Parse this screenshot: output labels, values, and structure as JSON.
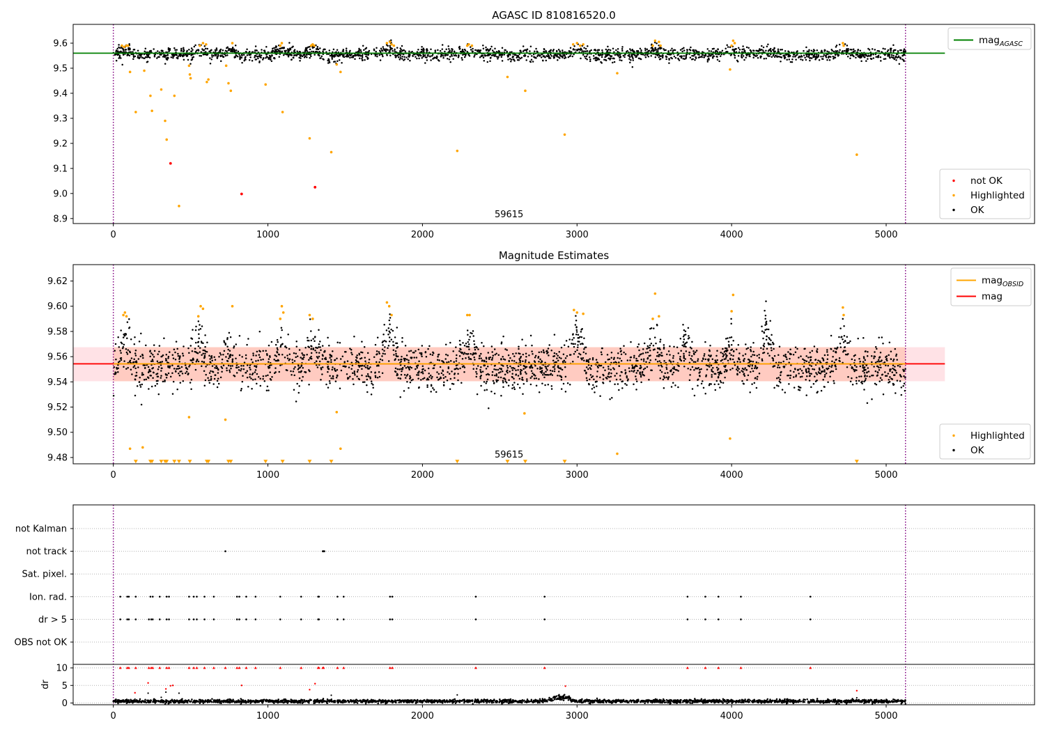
{
  "chart_data": [
    {
      "type": "scatter",
      "title": "AGASC ID 810816520.0",
      "xlim": [
        -260,
        5960
      ],
      "ylim": [
        8.88,
        9.675
      ],
      "x_ticks": [
        0,
        1000,
        2000,
        3000,
        4000,
        5000
      ],
      "y_ticks": [
        8.9,
        9.0,
        9.1,
        9.2,
        9.3,
        9.4,
        9.5,
        9.6
      ],
      "y_tick_labels": [
        "8.9",
        "9.0",
        "9.1",
        "9.2",
        "9.3",
        "9.4",
        "9.5",
        "9.6"
      ],
      "obs_boundaries": [
        0,
        5125
      ],
      "obsid_annotation": "59615",
      "obsid_annotation_x": 2560,
      "reference_lines": [
        {
          "name": "mag",
          "sub": "AGASC",
          "value": 9.56,
          "x_range": [
            -260,
            5380
          ],
          "color": "#008000"
        }
      ],
      "legend_top": [
        {
          "label": "mag",
          "sub": "AGASC",
          "kind": "line",
          "color": "#008000"
        }
      ],
      "legend_bottom": [
        {
          "label": "not OK",
          "kind": "dot",
          "color": "#ff0000"
        },
        {
          "label": "Highlighted",
          "kind": "dot",
          "color": "#ffa500"
        },
        {
          "label": "OK",
          "kind": "dot",
          "color": "#000000"
        }
      ],
      "series": [
        {
          "name": "OK",
          "color": "#000000",
          "type": "band_scatter",
          "x_range": [
            0,
            5125
          ],
          "center": 9.555,
          "spread": 0.013,
          "count": 2300,
          "bumps": [
            [
              80,
              9.575
            ],
            [
              560,
              9.578
            ],
            [
              760,
              9.572
            ],
            [
              1080,
              9.58
            ],
            [
              1290,
              9.578
            ],
            [
              1780,
              9.585
            ],
            [
              2300,
              9.575
            ],
            [
              3000,
              9.582
            ],
            [
              3500,
              9.578
            ],
            [
              4000,
              9.575
            ],
            [
              4220,
              9.578
            ],
            [
              4720,
              9.578
            ]
          ]
        },
        {
          "name": "Highlighted",
          "color": "#ffa500",
          "points": [
            [
              55,
              9.59
            ],
            [
              70,
              9.585
            ],
            [
              85,
              9.59
            ],
            [
              95,
              9.59
            ],
            [
              108,
              9.485
            ],
            [
              145,
              9.325
            ],
            [
              200,
              9.49
            ],
            [
              240,
              9.39
            ],
            [
              250,
              9.33
            ],
            [
              310,
              9.415
            ],
            [
              335,
              9.29
            ],
            [
              345,
              9.215
            ],
            [
              395,
              9.39
            ],
            [
              425,
              8.95
            ],
            [
              490,
              9.51
            ],
            [
              495,
              9.475
            ],
            [
              500,
              9.46
            ],
            [
              560,
              9.59
            ],
            [
              580,
              9.6
            ],
            [
              600,
              9.595
            ],
            [
              605,
              9.445
            ],
            [
              615,
              9.455
            ],
            [
              730,
              9.51
            ],
            [
              745,
              9.44
            ],
            [
              760,
              9.41
            ],
            [
              770,
              9.6
            ],
            [
              985,
              9.435
            ],
            [
              1080,
              9.59
            ],
            [
              1090,
              9.6
            ],
            [
              1095,
              9.325
            ],
            [
              1270,
              9.22
            ],
            [
              1280,
              9.59
            ],
            [
              1290,
              9.595
            ],
            [
              1300,
              9.59
            ],
            [
              1410,
              9.165
            ],
            [
              1445,
              9.515
            ],
            [
              1470,
              9.485
            ],
            [
              1770,
              9.6
            ],
            [
              1790,
              9.605
            ],
            [
              1800,
              9.595
            ],
            [
              1815,
              9.59
            ],
            [
              2225,
              9.17
            ],
            [
              2290,
              9.59
            ],
            [
              2300,
              9.595
            ],
            [
              2320,
              9.59
            ],
            [
              2550,
              9.465
            ],
            [
              2665,
              9.41
            ],
            [
              2920,
              9.235
            ],
            [
              2975,
              9.595
            ],
            [
              3000,
              9.6
            ],
            [
              3020,
              9.59
            ],
            [
              3040,
              9.595
            ],
            [
              3260,
              9.48
            ],
            [
              3490,
              9.59
            ],
            [
              3505,
              9.61
            ],
            [
              3530,
              9.605
            ],
            [
              3540,
              9.59
            ],
            [
              3990,
              9.495
            ],
            [
              4000,
              9.59
            ],
            [
              4010,
              9.61
            ],
            [
              4020,
              9.6
            ],
            [
              4720,
              9.6
            ],
            [
              4725,
              9.59
            ],
            [
              4810,
              9.155
            ]
          ]
        },
        {
          "name": "not OK",
          "color": "#ff0000",
          "points": [
            [
              370,
              9.12
            ],
            [
              830,
              8.998
            ],
            [
              1305,
              9.025
            ]
          ]
        }
      ]
    },
    {
      "type": "scatter",
      "title": "Magnitude Estimates",
      "xlim": [
        -260,
        5960
      ],
      "ylim": [
        9.475,
        9.633
      ],
      "x_ticks": [
        0,
        1000,
        2000,
        3000,
        4000,
        5000
      ],
      "y_ticks": [
        9.48,
        9.5,
        9.52,
        9.54,
        9.56,
        9.58,
        9.6,
        9.62
      ],
      "y_tick_labels": [
        "9.48",
        "9.50",
        "9.52",
        "9.54",
        "9.56",
        "9.58",
        "9.60",
        "9.62"
      ],
      "obs_boundaries": [
        0,
        5125
      ],
      "obsid_annotation": "59615",
      "obsid_annotation_x": 2560,
      "bands": [
        {
          "y_range": [
            9.5405,
            9.5675
          ],
          "x_range": [
            -260,
            5380
          ],
          "color": "#ffb6c1",
          "opacity": 0.4
        },
        {
          "y_range": [
            9.5405,
            9.5675
          ],
          "x_range": [
            0,
            5125
          ],
          "color": "#ffa07a",
          "opacity": 0.35
        }
      ],
      "reference_lines": [
        {
          "name": "mag",
          "value": 9.5543,
          "x_range": [
            -260,
            5380
          ],
          "color": "#ff0000"
        },
        {
          "name": "mag",
          "sub": "OBSID",
          "value": 9.5543,
          "x_range": [
            0,
            5125
          ],
          "color": "#ffa500"
        }
      ],
      "legend_top": [
        {
          "label": "mag",
          "sub": "OBSID",
          "kind": "line",
          "color": "#ffa500"
        },
        {
          "label": "mag",
          "kind": "line",
          "color": "#ff0000"
        }
      ],
      "legend_bottom": [
        {
          "label": "Highlighted",
          "kind": "dot",
          "color": "#ffa500"
        },
        {
          "label": "OK",
          "kind": "dot",
          "color": "#000000"
        }
      ],
      "series": [
        {
          "name": "OK",
          "color": "#000000",
          "type": "band_scatter",
          "x_range": [
            0,
            5125
          ],
          "center": 9.551,
          "spread": 0.009,
          "count": 2600,
          "bumps": [
            [
              80,
              9.578
            ],
            [
              560,
              9.576
            ],
            [
              760,
              9.565
            ],
            [
              1080,
              9.572
            ],
            [
              1290,
              9.578
            ],
            [
              1780,
              9.585
            ],
            [
              2300,
              9.575
            ],
            [
              3000,
              9.585
            ],
            [
              3500,
              9.578
            ],
            [
              3700,
              9.574
            ],
            [
              4000,
              9.57
            ],
            [
              4220,
              9.582
            ],
            [
              4720,
              9.578
            ]
          ]
        },
        {
          "name": "Highlighted",
          "color": "#ffa500",
          "points": [
            [
              65,
              9.593
            ],
            [
              75,
              9.595
            ],
            [
              85,
              9.592
            ],
            [
              108,
              9.487
            ],
            [
              190,
              9.488
            ],
            [
              490,
              9.512
            ],
            [
              550,
              9.592
            ],
            [
              565,
              9.6
            ],
            [
              580,
              9.598
            ],
            [
              725,
              9.51
            ],
            [
              770,
              9.6
            ],
            [
              1080,
              9.59
            ],
            [
              1090,
              9.6
            ],
            [
              1100,
              9.595
            ],
            [
              1270,
              9.593
            ],
            [
              1290,
              9.59
            ],
            [
              1445,
              9.516
            ],
            [
              1470,
              9.487
            ],
            [
              1770,
              9.603
            ],
            [
              1785,
              9.6
            ],
            [
              1800,
              9.593
            ],
            [
              2290,
              9.593
            ],
            [
              2305,
              9.593
            ],
            [
              2660,
              9.515
            ],
            [
              2980,
              9.597
            ],
            [
              3000,
              9.595
            ],
            [
              3040,
              9.594
            ],
            [
              3260,
              9.483
            ],
            [
              3490,
              9.59
            ],
            [
              3505,
              9.61
            ],
            [
              3530,
              9.592
            ],
            [
              3990,
              9.495
            ],
            [
              4000,
              9.596
            ],
            [
              4010,
              9.609
            ],
            [
              4720,
              9.599
            ],
            [
              4725,
              9.593
            ]
          ]
        },
        {
          "name": "Highlighted (below range)",
          "color": "#ffa500",
          "marker": "triangle-down",
          "points": [
            [
              145,
              9.4765
            ],
            [
              240,
              9.4765
            ],
            [
              250,
              9.4765
            ],
            [
              310,
              9.4765
            ],
            [
              335,
              9.4765
            ],
            [
              345,
              9.4765
            ],
            [
              395,
              9.4765
            ],
            [
              425,
              9.4765
            ],
            [
              495,
              9.4765
            ],
            [
              605,
              9.4765
            ],
            [
              615,
              9.4765
            ],
            [
              745,
              9.4765
            ],
            [
              760,
              9.4765
            ],
            [
              985,
              9.4765
            ],
            [
              1095,
              9.4765
            ],
            [
              1270,
              9.4765
            ],
            [
              1410,
              9.4765
            ],
            [
              2225,
              9.4765
            ],
            [
              2550,
              9.4765
            ],
            [
              2665,
              9.4765
            ],
            [
              2920,
              9.4765
            ],
            [
              4810,
              9.4765
            ]
          ]
        }
      ]
    },
    {
      "type": "scatter",
      "title": "",
      "xlim": [
        -260,
        5960
      ],
      "x_ticks": [
        0,
        1000,
        2000,
        3000,
        4000,
        5000
      ],
      "obs_boundaries": [
        0,
        5125
      ],
      "flag_rows": [
        "not Kalman",
        "not track",
        "Sat. pixel.",
        "Ion. rad.",
        "dr > 5",
        "OBS not OK"
      ],
      "flag_points": {
        "not Kalman": [],
        "not track": [
          725,
          1355,
          1360,
          1365
        ],
        "Sat. pixel.": [],
        "Ion. rad.": [
          45,
          90,
          100,
          145,
          240,
          255,
          300,
          345,
          360,
          490,
          520,
          540,
          590,
          650,
          800,
          815,
          860,
          920,
          1080,
          1215,
          1325,
          1330,
          1450,
          1490,
          1790,
          1805,
          2345,
          2790,
          3715,
          3830,
          3915,
          4060,
          4510
        ],
        "dr > 5": [
          45,
          90,
          100,
          145,
          230,
          245,
          255,
          300,
          345,
          360,
          490,
          520,
          540,
          590,
          650,
          800,
          815,
          860,
          920,
          1080,
          1215,
          1325,
          1330,
          1450,
          1490,
          1790,
          1805,
          2345,
          2790,
          3715,
          3830,
          3915,
          4060,
          4510
        ],
        "OBS not OK": []
      },
      "dr_panel": {
        "ylabel": "dr",
        "ylim": [
          -0.5,
          11
        ],
        "y_ticks": [
          0,
          5,
          10
        ],
        "y_tick_labels": [
          "0",
          "5",
          "10"
        ],
        "baseline": {
          "x_range": [
            0,
            5125
          ],
          "center": 0.5,
          "spread": 0.25,
          "count": 2600,
          "bumps": [
            [
              2850,
              1.3
            ],
            [
              2900,
              1.6
            ],
            [
              2950,
              1.2
            ]
          ]
        },
        "capped_points": [
          45,
          90,
          100,
          145,
          230,
          245,
          255,
          300,
          345,
          360,
          490,
          520,
          540,
          590,
          650,
          725,
          800,
          815,
          860,
          920,
          1080,
          1215,
          1325,
          1330,
          1355,
          1360,
          1450,
          1490,
          1790,
          1805,
          2345,
          2790,
          3715,
          3830,
          3915,
          4060,
          4510
        ],
        "red_points": [
          [
            140,
            2.9
          ],
          [
            225,
            5.7
          ],
          [
            340,
            4.0
          ],
          [
            370,
            4.9
          ],
          [
            385,
            5.0
          ],
          [
            830,
            5.0
          ],
          [
            1270,
            3.8
          ],
          [
            1305,
            5.5
          ],
          [
            2925,
            4.8
          ],
          [
            4810,
            3.5
          ]
        ],
        "black_points": [
          [
            140,
            1.1
          ],
          [
            225,
            2.8
          ],
          [
            310,
            1.6
          ],
          [
            340,
            3.1
          ],
          [
            425,
            2.8
          ],
          [
            830,
            1.0
          ],
          [
            1410,
            2.2
          ],
          [
            2225,
            2.3
          ],
          [
            4810,
            1.5
          ]
        ]
      }
    }
  ]
}
